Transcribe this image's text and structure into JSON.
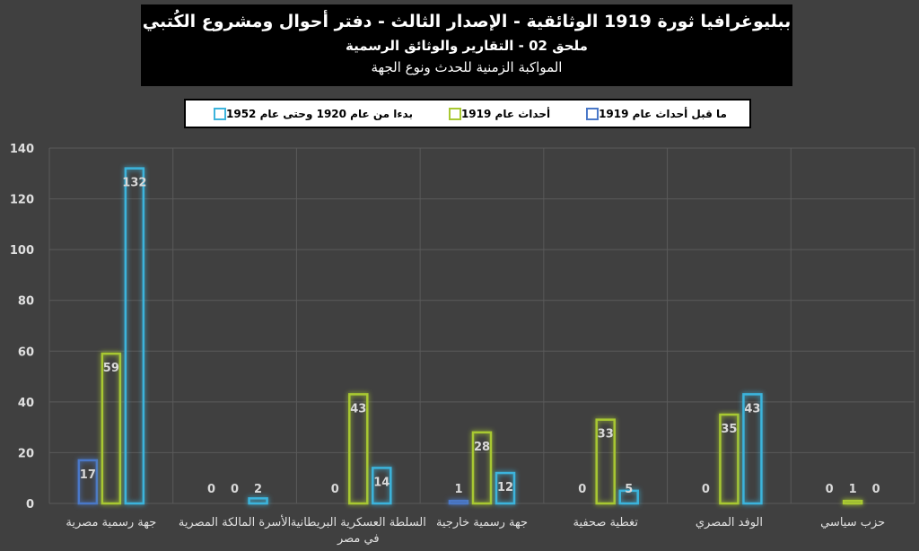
{
  "title": {
    "line1": "ببليوغرافيا ثورة 1919 الوثائقية - الإصدار الثالث - دفتر أحوال ومشروع الكُتبي",
    "line2": "ملحق 02 - التقارير والوثائق الرسمية",
    "line3": "المواكبة الزمنية للحدث ونوع الجهة"
  },
  "colors": {
    "background": "#404040",
    "grid": "#5a5a5a",
    "axis_text": "#e0e0e0"
  },
  "chart_data": {
    "type": "bar",
    "categories": [
      "جهة رسمية مصرية",
      "الأسرة المالكة المصرية",
      "السلطة العسكرية البريطانية في مصر",
      "جهة رسمية خارجية",
      "تغطية صحفية",
      "الوفد المصري",
      "حزب سياسي"
    ],
    "series": [
      {
        "name": "ما قبل أحداث عام 1919",
        "color": "#4a78c8",
        "values": [
          17,
          0,
          0,
          1,
          0,
          0,
          0
        ]
      },
      {
        "name": "أحداث عام 1919",
        "color": "#a8c832",
        "values": [
          59,
          0,
          43,
          28,
          33,
          35,
          1
        ]
      },
      {
        "name": "بدءا من عام 1920 وحتى عام 1952",
        "color": "#3cb4dc",
        "values": [
          132,
          2,
          14,
          12,
          5,
          43,
          0
        ]
      }
    ],
    "ylim": [
      0,
      140
    ],
    "yticks": [
      0,
      20,
      40,
      60,
      80,
      100,
      120,
      140
    ],
    "grid": true,
    "legend_position": "top"
  }
}
